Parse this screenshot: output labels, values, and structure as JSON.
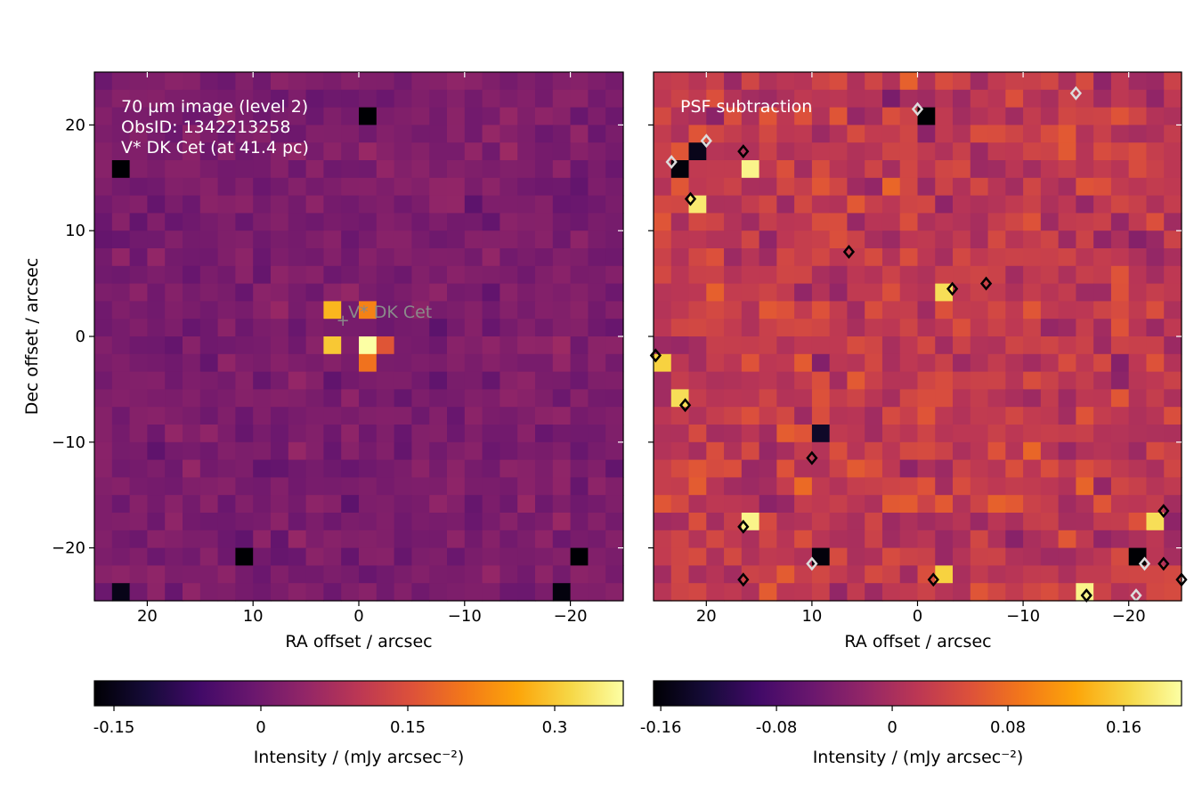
{
  "chart_data": [
    {
      "type": "heatmap",
      "panel": "left",
      "annotation_lines": [
        "70 µm image (level 2)",
        "ObsID: 1342213258",
        "V* DK Cet (at 41.4 pc)"
      ],
      "target_label": "V* DK Cet",
      "target_position": [
        1.5,
        1.5
      ],
      "xlabel": "RA offset / arcsec",
      "ylabel": "Dec offset / arcsec",
      "xlim": [
        25,
        -25
      ],
      "ylim": [
        -25,
        25
      ],
      "xticks": [
        20,
        10,
        0,
        -10,
        -20
      ],
      "yticks": [
        20,
        10,
        0,
        -10,
        -20
      ],
      "xtick_labels": [
        "20",
        "10",
        "0",
        "−10",
        "−20"
      ],
      "ytick_labels": [
        "20",
        "10",
        "0",
        "−10",
        "−20"
      ],
      "colormap": "inferno",
      "colorbar": {
        "label": "Intensity / (mJy arcsec⁻²)",
        "range": [
          -0.17,
          0.37
        ],
        "ticks": [
          -0.15,
          0,
          0.15,
          0.3
        ],
        "tick_labels": [
          "-0.15",
          "0",
          "0.15",
          "0.3"
        ]
      },
      "grid_size": 30,
      "bright_source_pixels": [
        {
          "x": 0,
          "y": 0,
          "value": 0.37
        },
        {
          "x": 1.7,
          "y": 0,
          "value": 0.3
        },
        {
          "x": 1.7,
          "y": 1.7,
          "value": 0.28
        },
        {
          "x": 0,
          "y": 1.7,
          "value": 0.22
        },
        {
          "x": 0,
          "y": -1.7,
          "value": 0.2
        },
        {
          "x": -1.7,
          "y": 0,
          "value": 0.16
        }
      ],
      "dark_pixels": [
        {
          "x": 0,
          "y": 21,
          "value": -0.17
        },
        {
          "x": 22.8,
          "y": 16,
          "value": -0.17
        },
        {
          "x": 10.5,
          "y": -21,
          "value": -0.17
        },
        {
          "x": -20.7,
          "y": -21,
          "value": -0.17
        },
        {
          "x": -19,
          "y": -24,
          "value": -0.16
        },
        {
          "x": 22.5,
          "y": -24,
          "value": -0.15
        }
      ]
    },
    {
      "type": "heatmap",
      "panel": "right",
      "annotation_lines": [
        "PSF subtraction"
      ],
      "xlabel": "RA offset / arcsec",
      "xlim": [
        25,
        -25
      ],
      "ylim": [
        -25,
        25
      ],
      "xticks": [
        20,
        10,
        0,
        -10,
        -20
      ],
      "xtick_labels": [
        "20",
        "10",
        "0",
        "−10",
        "−20"
      ],
      "colormap": "inferno",
      "colorbar": {
        "label": "Intensity / (mJy arcsec⁻²)",
        "range": [
          -0.165,
          0.2
        ],
        "ticks": [
          -0.16,
          -0.08,
          0,
          0.08,
          0.16
        ],
        "tick_labels": [
          "-0.16",
          "-0.08",
          "0",
          "0.08",
          "0.16"
        ]
      },
      "grid_size": 30,
      "bright_pixels": [
        {
          "x": 16.5,
          "y": 16.5,
          "value": 0.19
        },
        {
          "x": 21,
          "y": 13,
          "value": 0.18
        },
        {
          "x": -3.3,
          "y": 4,
          "value": 0.17
        },
        {
          "x": 16.5,
          "y": -18,
          "value": 0.19
        },
        {
          "x": -16,
          "y": -24,
          "value": 0.19
        },
        {
          "x": -23.3,
          "y": -17,
          "value": 0.17
        },
        {
          "x": -1.7,
          "y": -23,
          "value": 0.16
        },
        {
          "x": 24,
          "y": -2.5,
          "value": 0.16
        },
        {
          "x": 22,
          "y": -6.5,
          "value": 0.17
        }
      ],
      "dark_pixels": [
        {
          "x": 0,
          "y": 21,
          "value": -0.165
        },
        {
          "x": 23.3,
          "y": 16,
          "value": -0.16
        },
        {
          "x": 10,
          "y": -21,
          "value": -0.16
        },
        {
          "x": -20.7,
          "y": -21,
          "value": -0.165
        },
        {
          "x": 20,
          "y": 18,
          "value": -0.15
        },
        {
          "x": 10,
          "y": -9.5,
          "value": -0.14
        }
      ],
      "contours": [
        {
          "level": "positive",
          "color": "#000000",
          "at": [
            [
              16.5,
              17.5
            ],
            [
              21.5,
              13
            ],
            [
              6.5,
              8
            ],
            [
              -3.3,
              4.5
            ],
            [
              -6.5,
              5
            ],
            [
              24.8,
              -1.8
            ],
            [
              22,
              -6.5
            ],
            [
              10,
              -11.5
            ],
            [
              16.5,
              -18
            ],
            [
              16.5,
              -23
            ],
            [
              -1.5,
              -23
            ],
            [
              -23.3,
              -16.5
            ],
            [
              -23.3,
              -21.5
            ],
            [
              -16,
              -24.5
            ],
            [
              -25,
              -23
            ]
          ]
        },
        {
          "level": "negative",
          "color": "#dcdcdc",
          "at": [
            [
              0,
              21.5
            ],
            [
              23.3,
              16.5
            ],
            [
              20,
              18.5
            ],
            [
              10,
              -21.5
            ],
            [
              -20.7,
              -24.5
            ],
            [
              -21.5,
              -21.5
            ],
            [
              -15,
              23
            ]
          ]
        }
      ]
    }
  ]
}
